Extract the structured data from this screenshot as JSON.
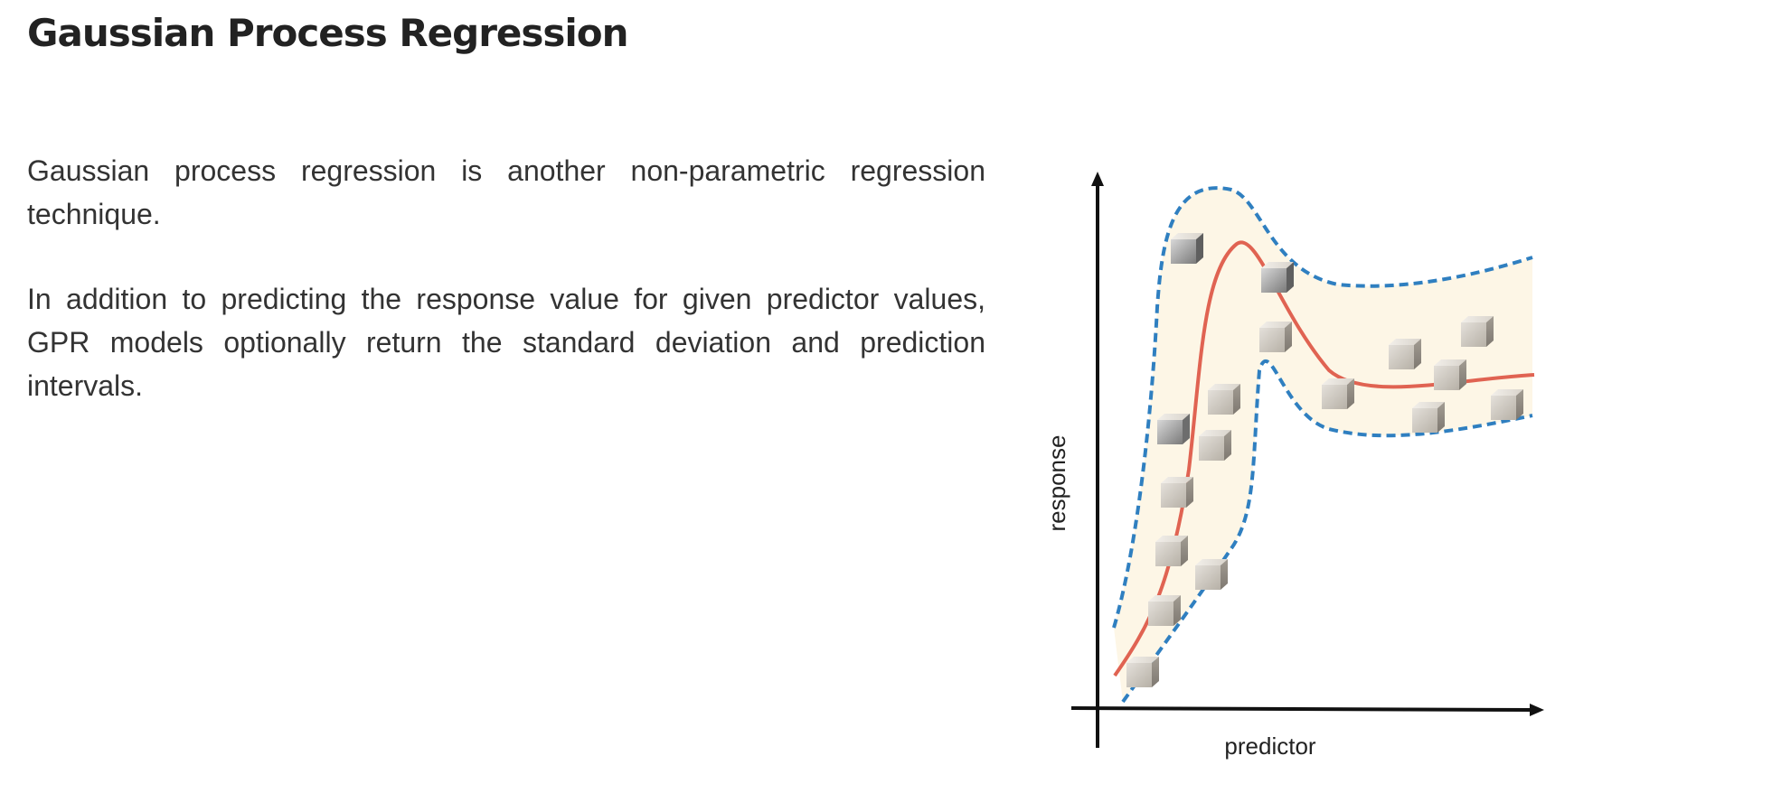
{
  "page": {
    "title": "Gaussian Process Regression",
    "paragraphs": [
      "Gaussian process regression is another non-parametric regression technique.",
      "In addition to predicting the response value for given predictor values, GPR models optionally return the standard deviation and prediction intervals."
    ]
  },
  "diagram": {
    "xlabel": "predictor",
    "ylabel": "response",
    "colors": {
      "mean_curve": "#e06352",
      "interval_band": "#2f7fc0",
      "band_fill": "#fdf6e6",
      "axis": "#111111"
    }
  }
}
